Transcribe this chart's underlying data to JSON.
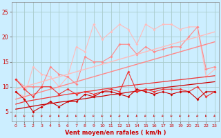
{
  "xlabel": "Vent moyen/en rafales ( km/h )",
  "background_color": "#cceeff",
  "grid_color": "#aacccc",
  "x": [
    0,
    1,
    2,
    3,
    4,
    5,
    6,
    7,
    8,
    9,
    10,
    11,
    12,
    13,
    14,
    15,
    16,
    17,
    18,
    19,
    20,
    21,
    22,
    23
  ],
  "line_lightest": [
    9.0,
    8.0,
    14.0,
    12.5,
    12.0,
    10.0,
    12.0,
    18.0,
    17.0,
    22.5,
    19.5,
    21.0,
    22.5,
    21.5,
    18.5,
    22.5,
    21.5,
    22.5,
    22.5,
    21.5,
    22.0,
    22.0,
    12.0,
    13.5
  ],
  "line_light": [
    11.5,
    10.0,
    10.0,
    10.0,
    14.0,
    12.5,
    12.0,
    10.5,
    16.0,
    15.0,
    15.0,
    16.0,
    18.5,
    18.5,
    16.5,
    18.0,
    17.0,
    17.5,
    18.0,
    18.0,
    20.0,
    22.0,
    13.5,
    14.0
  ],
  "trend_lightest": [
    9.5,
    10.0,
    10.5,
    11.0,
    11.5,
    12.0,
    12.5,
    13.0,
    13.5,
    14.0,
    14.5,
    15.0,
    15.5,
    16.0,
    16.5,
    17.0,
    17.5,
    18.0,
    18.5,
    19.0,
    19.5,
    20.0,
    20.5,
    21.0
  ],
  "trend_light": [
    7.5,
    8.0,
    8.5,
    9.0,
    9.5,
    10.0,
    10.5,
    11.0,
    11.5,
    12.0,
    12.5,
    13.0,
    13.5,
    14.0,
    14.5,
    15.0,
    15.5,
    16.0,
    16.5,
    17.0,
    17.5,
    18.0,
    18.5,
    19.0
  ],
  "trend_mid": [
    6.5,
    7.0,
    7.3,
    7.6,
    7.9,
    8.2,
    8.5,
    8.7,
    9.0,
    9.2,
    9.5,
    9.7,
    10.0,
    10.2,
    10.4,
    10.6,
    10.8,
    11.0,
    11.2,
    11.4,
    11.6,
    11.8,
    12.0,
    12.2
  ],
  "trend_dark": [
    5.5,
    5.8,
    6.1,
    6.4,
    6.6,
    6.9,
    7.1,
    7.4,
    7.6,
    7.9,
    8.1,
    8.4,
    8.6,
    8.9,
    9.1,
    9.3,
    9.5,
    9.8,
    10.0,
    10.2,
    10.4,
    10.6,
    10.8,
    11.0
  ],
  "line_mid": [
    11.5,
    9.5,
    8.0,
    10.0,
    10.0,
    8.5,
    9.5,
    8.5,
    9.0,
    8.5,
    9.0,
    9.5,
    9.0,
    13.0,
    9.0,
    9.5,
    9.0,
    9.5,
    9.5,
    9.5,
    9.0,
    10.0,
    8.0,
    9.0
  ],
  "line_dark": [
    9.0,
    7.5,
    5.0,
    6.0,
    7.0,
    6.0,
    7.0,
    7.0,
    8.5,
    8.0,
    9.0,
    9.0,
    8.5,
    8.0,
    9.5,
    9.0,
    8.5,
    9.0,
    8.5,
    9.0,
    9.0,
    7.5,
    9.0,
    9.0
  ],
  "color_dark_red": "#cc0000",
  "color_mid_red": "#ee3333",
  "color_light_red": "#ff8888",
  "color_lighter_red": "#ffbbbb",
  "ylim": [
    3,
    27
  ],
  "yticks": [
    5,
    10,
    15,
    20,
    25
  ]
}
